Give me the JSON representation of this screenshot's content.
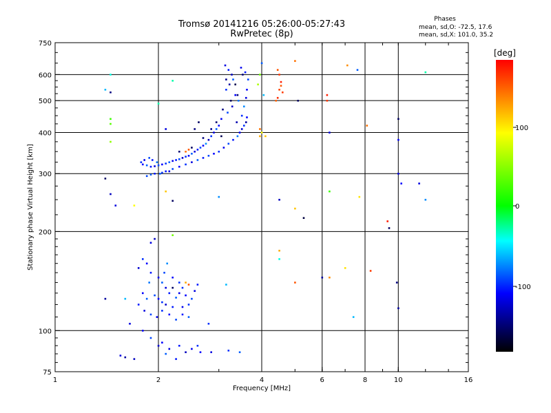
{
  "chart_data": {
    "type": "scatter",
    "title": "Tromsø 20141216 05:26:00-05:27:43",
    "subtitle": "RwPretec (8p)",
    "xlabel": "Frequency [MHz]",
    "ylabel": "Stationary phase Virtual Height [km]",
    "x_scale": "log",
    "y_scale": "log",
    "xlim": [
      1,
      16
    ],
    "ylim": [
      75,
      750
    ],
    "x_ticks": [
      "1",
      "2",
      "4",
      "6",
      "8",
      "10",
      "16"
    ],
    "y_ticks": [
      "75",
      "100",
      "200",
      "300",
      "400",
      "500",
      "600",
      "750"
    ],
    "grid": true,
    "stats_panel": {
      "title": "Phases",
      "line_o": "mean, sd,O: -72.5, 17.6",
      "line_x": "mean, sd,X: 101.0, 35.2"
    },
    "colorbar": {
      "label": "[deg]",
      "range": [
        -180,
        180
      ],
      "ticks": [
        "100",
        "0",
        "-100"
      ],
      "colors": [
        "#ff0000",
        "#ff8000",
        "#ffff00",
        "#00ff00",
        "#00ffff",
        "#0000ff",
        "#000000"
      ]
    },
    "points": [
      [
        3.13,
        640,
        -110
      ],
      [
        3.2,
        620,
        -95
      ],
      [
        3.27,
        600,
        -120
      ],
      [
        3.3,
        580,
        -80
      ],
      [
        3.22,
        560,
        -130
      ],
      [
        3.15,
        540,
        -90
      ],
      [
        3.35,
        520,
        -100
      ],
      [
        3.42,
        500,
        -75
      ],
      [
        3.28,
        480,
        -115
      ],
      [
        3.18,
        460,
        -85
      ],
      [
        3.05,
        440,
        -105
      ],
      [
        3.38,
        430,
        -125
      ],
      [
        3.5,
        450,
        -90
      ],
      [
        3.55,
        480,
        -70
      ],
      [
        3.6,
        510,
        -110
      ],
      [
        3.62,
        540,
        -100
      ],
      [
        3.65,
        580,
        -85
      ],
      [
        3.58,
        610,
        -95
      ],
      [
        3.48,
        630,
        -105
      ],
      [
        3.52,
        600,
        -140
      ],
      [
        3.0,
        420,
        -100
      ],
      [
        2.95,
        410,
        -80
      ],
      [
        2.9,
        400,
        -110
      ],
      [
        2.85,
        390,
        -90
      ],
      [
        2.8,
        380,
        -120
      ],
      [
        2.75,
        370,
        -70
      ],
      [
        2.7,
        365,
        -100
      ],
      [
        2.65,
        360,
        -85
      ],
      [
        2.6,
        355,
        -95
      ],
      [
        2.55,
        350,
        -110
      ],
      [
        2.5,
        345,
        -80
      ],
      [
        2.45,
        340,
        -100
      ],
      [
        2.4,
        338,
        -90
      ],
      [
        2.35,
        335,
        -115
      ],
      [
        2.3,
        332,
        -85
      ],
      [
        2.25,
        330,
        -95
      ],
      [
        2.2,
        328,
        -105
      ],
      [
        2.15,
        325,
        -80
      ],
      [
        2.1,
        322,
        -90
      ],
      [
        2.05,
        320,
        -100
      ],
      [
        2.0,
        318,
        -85
      ],
      [
        1.95,
        316,
        -110
      ],
      [
        1.9,
        315,
        -95
      ],
      [
        1.85,
        318,
        -80
      ],
      [
        1.8,
        320,
        -100
      ],
      [
        1.78,
        325,
        -90
      ],
      [
        1.82,
        330,
        -105
      ],
      [
        1.88,
        335,
        -85
      ],
      [
        1.92,
        330,
        -95
      ],
      [
        1.98,
        325,
        -75
      ],
      [
        2.02,
        300,
        -80
      ],
      [
        2.1,
        305,
        -95
      ],
      [
        2.2,
        310,
        -85
      ],
      [
        2.3,
        315,
        -100
      ],
      [
        2.4,
        320,
        -90
      ],
      [
        2.5,
        325,
        -110
      ],
      [
        2.6,
        330,
        -80
      ],
      [
        2.7,
        335,
        -95
      ],
      [
        2.8,
        340,
        -85
      ],
      [
        2.9,
        345,
        -100
      ],
      [
        3.0,
        350,
        -90
      ],
      [
        3.1,
        360,
        -105
      ],
      [
        3.2,
        370,
        -85
      ],
      [
        3.3,
        380,
        -95
      ],
      [
        3.4,
        390,
        -75
      ],
      [
        3.45,
        400,
        -100
      ],
      [
        3.5,
        410,
        -115
      ],
      [
        3.55,
        420,
        -90
      ],
      [
        3.6,
        430,
        -130
      ],
      [
        3.62,
        445,
        -100
      ],
      [
        1.85,
        295,
        -85
      ],
      [
        1.9,
        298,
        -80
      ],
      [
        1.95,
        300,
        -95
      ],
      [
        2.05,
        302,
        -90
      ],
      [
        2.15,
        305,
        -110
      ],
      [
        3.08,
        470,
        -140
      ],
      [
        3.25,
        500,
        -150
      ],
      [
        3.4,
        520,
        -145
      ],
      [
        3.15,
        580,
        -135
      ],
      [
        3.35,
        560,
        -155
      ],
      [
        2.7,
        385,
        -140
      ],
      [
        2.5,
        360,
        -150
      ],
      [
        2.85,
        410,
        -135
      ],
      [
        2.95,
        430,
        -145
      ],
      [
        3.05,
        390,
        -155
      ],
      [
        2.62,
        430,
        -150
      ],
      [
        2.55,
        410,
        -140
      ],
      [
        2.3,
        350,
        -145
      ],
      [
        2.4,
        350,
        140
      ],
      [
        2.45,
        355,
        150
      ],
      [
        1.9,
        185,
        -110
      ],
      [
        1.95,
        190,
        -120
      ],
      [
        1.8,
        165,
        -90
      ],
      [
        1.85,
        160,
        -100
      ],
      [
        1.75,
        155,
        -115
      ],
      [
        1.9,
        150,
        -95
      ],
      [
        2.0,
        145,
        -105
      ],
      [
        2.05,
        140,
        -80
      ],
      [
        2.1,
        135,
        -110
      ],
      [
        2.15,
        130,
        -95
      ],
      [
        1.95,
        128,
        -85
      ],
      [
        2.0,
        125,
        -100
      ],
      [
        2.05,
        122,
        -90
      ],
      [
        2.1,
        120,
        -115
      ],
      [
        2.2,
        118,
        -95
      ],
      [
        2.25,
        126,
        -80
      ],
      [
        2.3,
        130,
        -105
      ],
      [
        2.35,
        135,
        -90
      ],
      [
        2.4,
        128,
        -100
      ],
      [
        2.5,
        125,
        -85
      ],
      [
        2.55,
        132,
        -110
      ],
      [
        2.6,
        138,
        -95
      ],
      [
        2.45,
        120,
        -90
      ],
      [
        2.35,
        118,
        -105
      ],
      [
        1.85,
        125,
        -80
      ],
      [
        1.8,
        130,
        -100
      ],
      [
        1.75,
        120,
        -95
      ],
      [
        1.82,
        115,
        -110
      ],
      [
        1.9,
        112,
        -85
      ],
      [
        1.98,
        110,
        -105
      ],
      [
        2.05,
        115,
        -90
      ],
      [
        2.15,
        112,
        -100
      ],
      [
        2.25,
        108,
        -85
      ],
      [
        2.35,
        112,
        -95
      ],
      [
        2.45,
        110,
        -80
      ],
      [
        1.88,
        140,
        -75
      ],
      [
        2.08,
        150,
        -85
      ],
      [
        2.12,
        160,
        -70
      ],
      [
        2.2,
        145,
        -100
      ],
      [
        2.3,
        140,
        -90
      ],
      [
        2.4,
        140,
        120
      ],
      [
        2.45,
        138,
        150
      ],
      [
        2.2,
        135,
        -150
      ],
      [
        2.05,
        92,
        -100
      ],
      [
        2.15,
        88,
        -110
      ],
      [
        2.3,
        90,
        -95
      ],
      [
        2.4,
        86,
        -120
      ],
      [
        2.5,
        88,
        -105
      ],
      [
        2.6,
        90,
        -90
      ],
      [
        1.9,
        95,
        -85
      ],
      [
        2.0,
        90,
        -115
      ],
      [
        1.6,
        83,
        -130
      ],
      [
        1.55,
        84,
        -110
      ],
      [
        1.7,
        82,
        -120
      ],
      [
        2.1,
        85,
        -80
      ],
      [
        2.65,
        86,
        -100
      ],
      [
        2.85,
        86,
        -110
      ],
      [
        3.2,
        87,
        -90
      ],
      [
        3.45,
        86,
        -80
      ],
      [
        2.25,
        82,
        -95
      ],
      [
        4.45,
        620,
        150
      ],
      [
        4.5,
        600,
        160
      ],
      [
        4.55,
        570,
        170
      ],
      [
        4.5,
        540,
        155
      ],
      [
        4.45,
        510,
        165
      ],
      [
        4.4,
        500,
        145
      ],
      [
        4.55,
        555,
        150
      ],
      [
        4.6,
        530,
        158
      ],
      [
        4.0,
        650,
        -80
      ],
      [
        3.95,
        600,
        40
      ],
      [
        3.9,
        560,
        60
      ],
      [
        4.05,
        520,
        -60
      ],
      [
        4.0,
        400,
        90
      ],
      [
        3.95,
        410,
        140
      ],
      [
        3.95,
        390,
        120
      ],
      [
        4.1,
        390,
        110
      ],
      [
        5.0,
        660,
        140
      ],
      [
        5.1,
        500,
        -150
      ],
      [
        7.1,
        640,
        130
      ],
      [
        7.6,
        620,
        -80
      ],
      [
        10.0,
        440,
        -150
      ],
      [
        10.0,
        380,
        -100
      ],
      [
        10.0,
        300,
        -110
      ],
      [
        10.2,
        280,
        -100
      ],
      [
        11.5,
        280,
        -110
      ],
      [
        12.0,
        610,
        -30
      ],
      [
        12.0,
        250,
        -70
      ],
      [
        6.2,
        520,
        170
      ],
      [
        6.2,
        500,
        160
      ],
      [
        8.1,
        420,
        140
      ],
      [
        6.3,
        400,
        -110
      ],
      [
        7.7,
        255,
        100
      ],
      [
        9.3,
        215,
        170
      ],
      [
        9.4,
        205,
        -150
      ],
      [
        5.0,
        235,
        110
      ],
      [
        4.5,
        250,
        -120
      ],
      [
        5.3,
        220,
        -160
      ],
      [
        6.3,
        265,
        20
      ],
      [
        4.5,
        175,
        120
      ],
      [
        4.5,
        165,
        -40
      ],
      [
        5.0,
        140,
        150
      ],
      [
        6.0,
        145,
        -130
      ],
      [
        6.3,
        145,
        130
      ],
      [
        7.0,
        155,
        100
      ],
      [
        8.3,
        152,
        160
      ],
      [
        7.4,
        110,
        -60
      ],
      [
        9.9,
        140,
        -140
      ],
      [
        10.0,
        117,
        -130
      ],
      [
        1.45,
        600,
        -40
      ],
      [
        1.4,
        540,
        -60
      ],
      [
        1.45,
        530,
        -140
      ],
      [
        1.45,
        440,
        20
      ],
      [
        1.45,
        425,
        30
      ],
      [
        1.45,
        375,
        50
      ],
      [
        1.4,
        290,
        -150
      ],
      [
        1.45,
        260,
        -120
      ],
      [
        1.5,
        240,
        -110
      ],
      [
        1.7,
        240,
        90
      ],
      [
        2.2,
        575,
        -30
      ],
      [
        2.0,
        490,
        -30
      ],
      [
        2.1,
        265,
        110
      ],
      [
        2.2,
        248,
        -150
      ],
      [
        2.2,
        195,
        40
      ],
      [
        3.0,
        255,
        -70
      ],
      [
        1.4,
        125,
        -130
      ],
      [
        1.6,
        125,
        -60
      ],
      [
        2.1,
        410,
        -110
      ],
      [
        3.15,
        138,
        -60
      ],
      [
        1.65,
        105,
        -110
      ],
      [
        1.8,
        100,
        -100
      ],
      [
        2.8,
        105,
        -90
      ]
    ]
  }
}
